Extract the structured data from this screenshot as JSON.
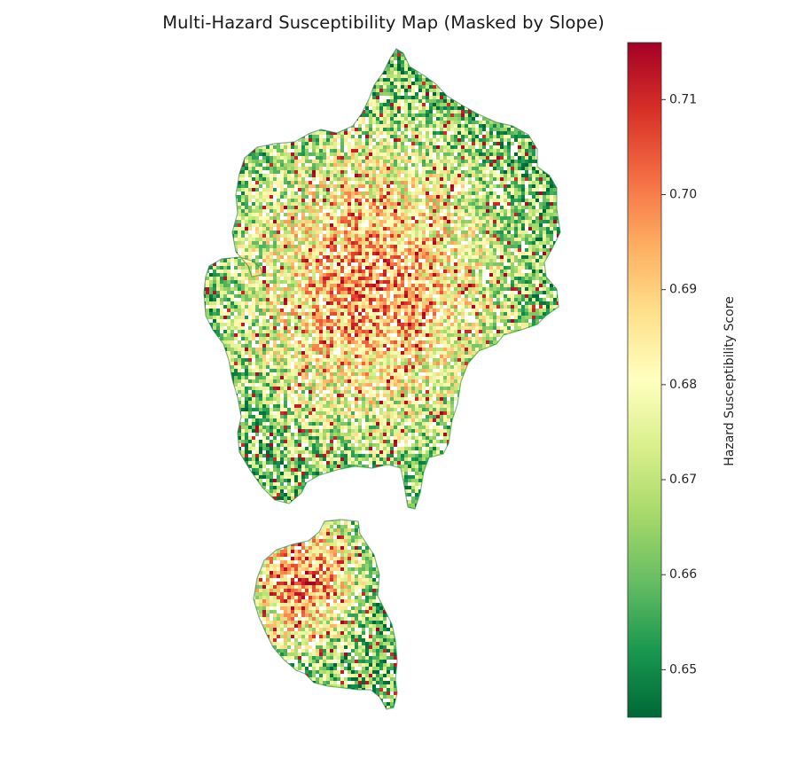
{
  "figure": {
    "title": "Multi-Hazard Susceptibility Map (Masked by Slope)"
  },
  "map": {
    "kind": "raster-choropleth",
    "colormap": "RdYlGn_r",
    "colormap_stops": [
      "#006837",
      "#1a9850",
      "#66bd63",
      "#a6d96a",
      "#d9ef8b",
      "#ffffbf",
      "#fee08b",
      "#fdae61",
      "#f46d43",
      "#d73027",
      "#a50026"
    ],
    "mask_note": "",
    "regions": [
      "northern-region",
      "southern-region"
    ],
    "background": "#ffffff"
  },
  "colorbar": {
    "label": "Hazard Susceptibility Score",
    "vmin": 0.645,
    "vmax": 0.716,
    "ticks": [
      {
        "value": 0.65,
        "label": "0.65"
      },
      {
        "value": 0.66,
        "label": "0.66"
      },
      {
        "value": 0.67,
        "label": "0.67"
      },
      {
        "value": 0.68,
        "label": "0.68"
      },
      {
        "value": 0.69,
        "label": "0.69"
      },
      {
        "value": 0.7,
        "label": "0.70"
      },
      {
        "value": 0.71,
        "label": "0.71"
      }
    ]
  }
}
